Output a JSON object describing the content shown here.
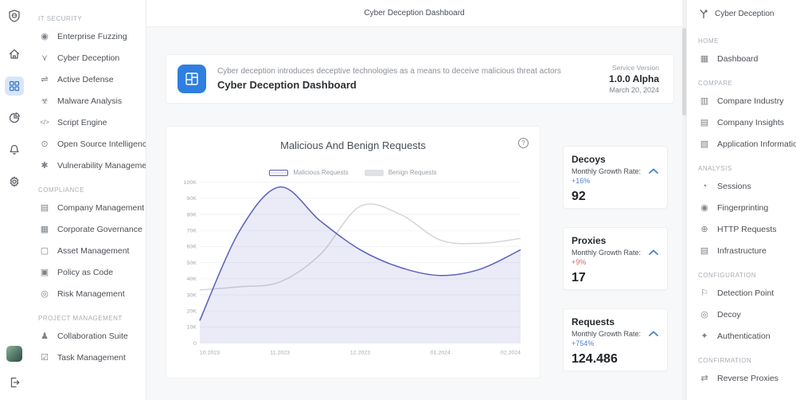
{
  "app": {
    "header_title": "Cyber Deception Dashboard"
  },
  "icon_rail": {
    "items": [
      "shield-logo",
      "home",
      "apps-grid",
      "pie-chart",
      "notifications-bell",
      "settings-gear",
      "user-avatar",
      "logout"
    ],
    "active_item": "apps-grid",
    "active_color": "#3c78c9"
  },
  "left_nav": {
    "sections": [
      {
        "title": "IT SECURITY",
        "items": [
          {
            "icon": "◉",
            "label": "Enterprise Fuzzing"
          },
          {
            "icon": "⋎",
            "label": "Cyber Deception"
          },
          {
            "icon": "⇌",
            "label": "Active Defense"
          },
          {
            "icon": "☣",
            "label": "Malware Analysis"
          },
          {
            "icon": "</>",
            "label": "Script Engine"
          },
          {
            "icon": "⊙",
            "label": "Open Source Intelligence"
          },
          {
            "icon": "✱",
            "label": "Vulnerability Management"
          }
        ]
      },
      {
        "title": "COMPLIANCE",
        "items": [
          {
            "icon": "▤",
            "label": "Company Management"
          },
          {
            "icon": "▦",
            "label": "Corporate Governance"
          },
          {
            "icon": "▢",
            "label": "Asset Management"
          },
          {
            "icon": "▣",
            "label": "Policy as Code"
          },
          {
            "icon": "◎",
            "label": "Risk Management"
          }
        ]
      },
      {
        "title": "PROJECT MANAGEMENT",
        "items": [
          {
            "icon": "♟",
            "label": "Collaboration Suite"
          },
          {
            "icon": "☑",
            "label": "Task Management"
          }
        ]
      }
    ]
  },
  "banner": {
    "description": "Cyber deception introduces deceptive technologies as a means to deceive malicious threat actors",
    "title": "Cyber Deception Dashboard",
    "service_version_label": "Service Version",
    "version": "1.0.0 Alpha",
    "date": "March 20, 2024",
    "icon_color": "#2e7fe0"
  },
  "chart_data": {
    "type": "area",
    "title": "Malicious And Benign Requests",
    "x_labels": [
      "10.2023",
      "11.2023",
      "12.2023",
      "01.2024",
      "02.2024"
    ],
    "points_per_interval": 2,
    "ylim": [
      0,
      100000
    ],
    "yticks": [
      "0",
      "10K",
      "20K",
      "30K",
      "40K",
      "50K",
      "60K",
      "70K",
      "80K",
      "90K",
      "100K"
    ],
    "grid": "horizontal",
    "legend_position": "top-center",
    "series": [
      {
        "name": "Malicious Requests",
        "color": "#5d62c1",
        "fill": "rgba(99,102,193,0.13)",
        "swatch_style": "border:1px solid #5d62c1;background:#eceefb",
        "values": [
          14000,
          70000,
          97000,
          76000,
          58000,
          47000,
          42000,
          46000,
          58000
        ]
      },
      {
        "name": "Benign Requests",
        "color": "#d3d5d9",
        "fill": "none",
        "swatch_style": "background:#dfe1e5;border:1px solid #dfe1e5",
        "values": [
          33000,
          35000,
          38000,
          55000,
          85000,
          80000,
          64000,
          62000,
          65000
        ]
      }
    ]
  },
  "chart_help_icon": "?",
  "stat_cards": [
    {
      "title": "Decoys",
      "growth_label": "Monthly Growth Rate:",
      "growth_value": "+16%",
      "growth_style": "color:#4e7fd0",
      "value": "92"
    },
    {
      "title": "Proxies",
      "growth_label": "Monthly Growth Rate:",
      "growth_value": "+9%",
      "growth_style": "color:#cf6a6a",
      "value": "17"
    },
    {
      "title": "Requests",
      "growth_label": "Monthly Growth Rate:",
      "growth_value": "+754%",
      "growth_style": "color:#4e7fd0",
      "value": "124.486"
    }
  ],
  "right_sidebar": {
    "title": "Cyber Deception",
    "sections": [
      {
        "title": "HOME",
        "items": [
          {
            "icon": "▦",
            "label": "Dashboard"
          }
        ]
      },
      {
        "title": "COMPARE",
        "items": [
          {
            "icon": "▥",
            "label": "Compare Industry"
          },
          {
            "icon": "▤",
            "label": "Company Insights"
          },
          {
            "icon": "▧",
            "label": "Application Information"
          }
        ]
      },
      {
        "title": "ANALYSIS",
        "items": [
          {
            "icon": "◔",
            "label": "Sessions"
          },
          {
            "icon": "◉",
            "label": "Fingerprinting"
          },
          {
            "icon": "⊕",
            "label": "HTTP Requests"
          },
          {
            "icon": "▤",
            "label": "Infrastructure"
          }
        ]
      },
      {
        "title": "CONFIGURATION",
        "items": [
          {
            "icon": "⚐",
            "label": "Detection Point"
          },
          {
            "icon": "◎",
            "label": "Decoy"
          },
          {
            "icon": "✦",
            "label": "Authentication"
          }
        ]
      },
      {
        "title": "CONFIRMATION",
        "items": [
          {
            "icon": "⇄",
            "label": "Reverse Proxies"
          }
        ]
      }
    ]
  },
  "colors": {
    "accent_blue": "#3c78c9",
    "malicious_purple": "#5d62c1",
    "benign_gray": "#d3d5d9",
    "growth_positive_blue": "#4e7fd0",
    "growth_negative_red": "#cf6a6a",
    "main_background": "#f7f8f9"
  }
}
